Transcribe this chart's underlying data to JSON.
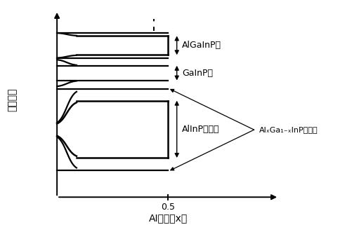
{
  "xlabel": "AI组分（x）",
  "ylabel": "生长方向",
  "x_tick_label": "0.5",
  "label_AlGaInP": "AlGaInP层",
  "label_GaInP": "GaInP层",
  "label_AlInP": "AlInP中间层",
  "label_graded": "AlₓGa₁₋ₓInP渐变层",
  "bg_color": "#ffffff",
  "line_color": "#000000",
  "fig_width": 5.11,
  "fig_height": 3.21,
  "dpi": 100
}
